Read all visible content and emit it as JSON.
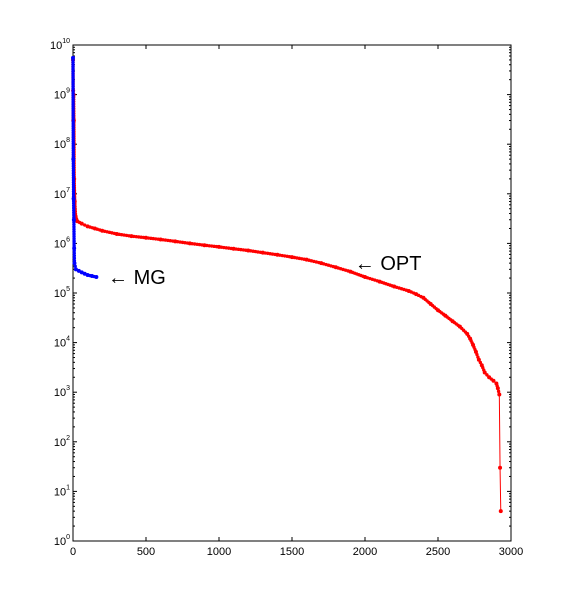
{
  "chart_data": {
    "type": "line",
    "title": "",
    "xlabel": "",
    "ylabel": "",
    "xlim": [
      0,
      3000
    ],
    "ylim": [
      1,
      10000000000
    ],
    "yscale": "log",
    "grid": false,
    "x_ticks": [
      {
        "value": 0,
        "label": "0"
      },
      {
        "value": 500,
        "label": "500"
      },
      {
        "value": 1000,
        "label": "1000"
      },
      {
        "value": 1500,
        "label": "1500"
      },
      {
        "value": 2000,
        "label": "2000"
      },
      {
        "value": 2500,
        "label": "2500"
      },
      {
        "value": 3000,
        "label": "3000"
      }
    ],
    "y_ticks": [
      {
        "value": 1,
        "base": "10",
        "exp": "0"
      },
      {
        "value": 10,
        "base": "10",
        "exp": "1"
      },
      {
        "value": 100,
        "base": "10",
        "exp": "2"
      },
      {
        "value": 1000,
        "base": "10",
        "exp": "3"
      },
      {
        "value": 10000,
        "base": "10",
        "exp": "4"
      },
      {
        "value": 100000,
        "base": "10",
        "exp": "5"
      },
      {
        "value": 1000000,
        "base": "10",
        "exp": "6"
      },
      {
        "value": 10000000,
        "base": "10",
        "exp": "7"
      },
      {
        "value": 100000000,
        "base": "10",
        "exp": "8"
      },
      {
        "value": 1000000000,
        "base": "10",
        "exp": "9"
      },
      {
        "value": 10000000000,
        "base": "10",
        "exp": "10"
      }
    ],
    "series": [
      {
        "color": "#ff0000",
        "marker": "dot",
        "points": [
          [
            0,
            5000000000
          ],
          [
            1,
            1200000000
          ],
          [
            2,
            300000000
          ],
          [
            4,
            1000000000
          ],
          [
            6,
            300000000
          ],
          [
            8,
            20000000
          ],
          [
            12,
            7000000
          ],
          [
            18,
            3500000
          ],
          [
            30,
            2800000
          ],
          [
            60,
            2500000
          ],
          [
            100,
            2200000
          ],
          [
            150,
            2000000
          ],
          [
            200,
            1800000
          ],
          [
            300,
            1550000
          ],
          [
            400,
            1400000
          ],
          [
            500,
            1300000
          ],
          [
            600,
            1200000
          ],
          [
            700,
            1100000
          ],
          [
            800,
            1000000
          ],
          [
            900,
            920000
          ],
          [
            1000,
            850000
          ],
          [
            1100,
            780000
          ],
          [
            1200,
            720000
          ],
          [
            1300,
            650000
          ],
          [
            1400,
            590000
          ],
          [
            1500,
            530000
          ],
          [
            1600,
            470000
          ],
          [
            1700,
            400000
          ],
          [
            1800,
            330000
          ],
          [
            1900,
            270000
          ],
          [
            2000,
            210000
          ],
          [
            2100,
            170000
          ],
          [
            2200,
            135000
          ],
          [
            2300,
            110000
          ],
          [
            2350,
            95000
          ],
          [
            2400,
            80000
          ],
          [
            2450,
            60000
          ],
          [
            2500,
            45000
          ],
          [
            2550,
            35000
          ],
          [
            2600,
            27000
          ],
          [
            2650,
            21000
          ],
          [
            2700,
            15000
          ],
          [
            2720,
            12000
          ],
          [
            2740,
            9000
          ],
          [
            2760,
            6500
          ],
          [
            2780,
            4500
          ],
          [
            2800,
            3500
          ],
          [
            2820,
            2500
          ],
          [
            2850,
            2000
          ],
          [
            2880,
            1700
          ],
          [
            2900,
            1500
          ],
          [
            2910,
            1200
          ],
          [
            2920,
            900
          ],
          [
            2925,
            30
          ],
          [
            2930,
            4
          ]
        ]
      },
      {
        "color": "#0000ff",
        "marker": "dot",
        "points": [
          [
            0,
            5500000000
          ],
          [
            2,
            50000000
          ],
          [
            4,
            8000000
          ],
          [
            6,
            3000000
          ],
          [
            8,
            800000
          ],
          [
            10,
            400000
          ],
          [
            20,
            300000
          ],
          [
            40,
            280000
          ],
          [
            60,
            260000
          ],
          [
            80,
            245000
          ],
          [
            100,
            230000
          ],
          [
            130,
            220000
          ],
          [
            160,
            210000
          ]
        ]
      }
    ],
    "annotations": [
      {
        "text": "← MG",
        "x": 240,
        "y": 210000
      },
      {
        "text": "← OPT",
        "x": 1930,
        "y": 400000
      }
    ]
  }
}
